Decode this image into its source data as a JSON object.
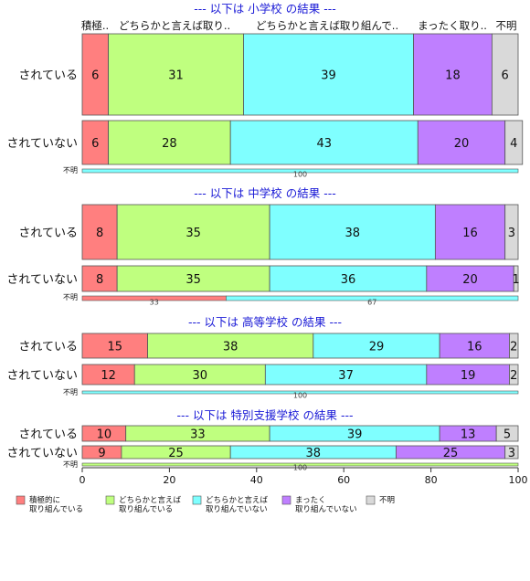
{
  "chart_data": {
    "type": "bar",
    "orientation": "horizontal",
    "stacked": true,
    "xlim": [
      0,
      100
    ],
    "x_ticks": [
      0,
      20,
      40,
      60,
      80,
      100
    ],
    "legend_position": "bottom",
    "legend": [
      {
        "name": "積極的に\n取り組んでいる",
        "color": "#ff7f7f"
      },
      {
        "name": "どちらかと言えば\n取り組んでいる",
        "color": "#bfff7f"
      },
      {
        "name": "どちらかと言えば\n取り組んでいない",
        "color": "#7fffff"
      },
      {
        "name": "まったく\n取り組んでいない",
        "color": "#bf7fff"
      },
      {
        "name": "不明",
        "color": "#d9d9d9"
      }
    ],
    "top_labels": [
      "積極..",
      "どちらかと言えば取り..",
      "どちらかと言えば取り組んで..",
      "まったく取り..",
      "不明"
    ],
    "panels": [
      {
        "title": "--- 以下は 小学校 の結果 ---",
        "rows": [
          {
            "label": "されている",
            "values": [
              6,
              31,
              39,
              18,
              6
            ]
          },
          {
            "label": "されていない",
            "values": [
              6,
              28,
              43,
              20,
              4
            ]
          }
        ],
        "unknown_row": {
          "label": "不明",
          "values": [
            0,
            0,
            100,
            0,
            0
          ]
        }
      },
      {
        "title": "--- 以下は 中学校 の結果 ---",
        "rows": [
          {
            "label": "されている",
            "values": [
              8,
              35,
              38,
              16,
              3
            ]
          },
          {
            "label": "されていない",
            "values": [
              8,
              35,
              36,
              20,
              1
            ]
          }
        ],
        "unknown_row": {
          "label": "不明",
          "values": [
            33,
            0,
            67,
            0,
            0
          ]
        }
      },
      {
        "title": "--- 以下は 高等学校 の結果 ---",
        "rows": [
          {
            "label": "されている",
            "values": [
              15,
              38,
              29,
              16,
              2
            ]
          },
          {
            "label": "されていない",
            "values": [
              12,
              30,
              37,
              19,
              2
            ]
          }
        ],
        "unknown_row": {
          "label": "不明",
          "values": [
            0,
            0,
            100,
            0,
            0
          ]
        }
      },
      {
        "title": "--- 以下は 特別支援学校 の結果 ---",
        "rows": [
          {
            "label": "されている",
            "values": [
              10,
              33,
              39,
              13,
              5
            ]
          },
          {
            "label": "されていない",
            "values": [
              9,
              25,
              38,
              25,
              3
            ]
          }
        ],
        "unknown_row": {
          "label": "不明",
          "values": [
            0,
            100,
            0,
            0,
            0
          ]
        }
      }
    ]
  }
}
